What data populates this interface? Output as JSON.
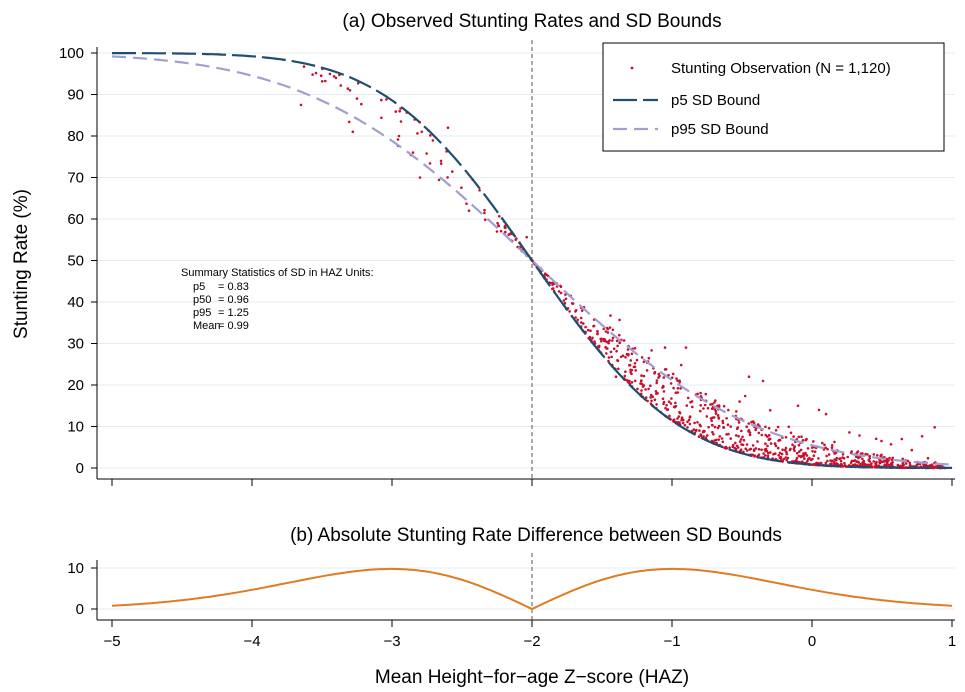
{
  "chart_data": [
    {
      "type": "scatter",
      "title": "(a) Observed Stunting Rates and SD Bounds",
      "xlabel": "",
      "ylabel": "Stunting Rate (%)",
      "xlim": [
        -5,
        1
      ],
      "ylim": [
        0,
        100
      ],
      "x_ticks": [
        "-5",
        "-4",
        "-3",
        "-2",
        "-1",
        "0",
        "1"
      ],
      "y_ticks": [
        "0",
        "10",
        "20",
        "30",
        "40",
        "50",
        "60",
        "70",
        "80",
        "90",
        "100"
      ],
      "reference_line_x": -2,
      "grid": "horizontal",
      "legend_position": "top-right",
      "legend": {
        "observation": "Stunting Observation (N = 1,120)",
        "p5": "p5 SD Bound",
        "p95": "p95 SD Bound"
      },
      "series": [
        {
          "name": "Stunting Observation (N = 1,120)",
          "kind": "scatter",
          "color": "#c8102e",
          "n": 1120,
          "points_sample": [
            [
              -3.65,
              87.5
            ],
            [
              -3.4,
              94
            ],
            [
              -3.3,
              91
            ],
            [
              -3.28,
              81
            ],
            [
              -3.25,
              89
            ],
            [
              -2.95,
              80
            ],
            [
              -2.85,
              76
            ],
            [
              -2.8,
              70
            ],
            [
              -2.65,
              74
            ],
            [
              -2.6,
              82
            ],
            [
              -2.45,
              62
            ],
            [
              -2.25,
              57
            ],
            [
              -1.55,
              30
            ],
            [
              -1.4,
              22
            ],
            [
              -1.05,
              29
            ],
            [
              -0.9,
              29
            ],
            [
              -0.45,
              22
            ],
            [
              -0.35,
              21
            ],
            [
              -0.1,
              15
            ],
            [
              0.05,
              14
            ],
            [
              0.1,
              13
            ]
          ]
        },
        {
          "name": "p5 SD Bound",
          "kind": "line",
          "sd": 0.83,
          "color": "#1f4e6e",
          "dash": "long-dash"
        },
        {
          "name": "p95 SD Bound",
          "kind": "line",
          "sd": 1.25,
          "color": "#a09fd0",
          "dash": "dash"
        }
      ],
      "annotation": {
        "heading": "Summary Statistics of SD in HAZ Units:",
        "rows": [
          {
            "label": "p5",
            "value": "= 0.83"
          },
          {
            "label": "p50",
            "value": "= 0.96"
          },
          {
            "label": "p95",
            "value": "= 1.25"
          },
          {
            "label": "Mean",
            "value": "= 0.99"
          }
        ]
      }
    },
    {
      "type": "line",
      "title": "(b) Absolute Stunting Rate Difference between SD Bounds",
      "xlabel": "Mean Height−for−age Z−score (HAZ)",
      "ylabel": "",
      "xlim": [
        -5,
        1
      ],
      "ylim": [
        0,
        10
      ],
      "x_ticks": [
        "−5",
        "−4",
        "−3",
        "−2",
        "−1",
        "0",
        "1"
      ],
      "y_ticks": [
        "0",
        "10"
      ],
      "reference_line_x": -2,
      "grid": "horizontal",
      "series": [
        {
          "name": "",
          "color": "#e07b22",
          "x": [
            -5,
            -4.5,
            -4,
            -3.5,
            -3,
            -2.5,
            -2,
            -1.5,
            -1,
            -0.5,
            0,
            0.5,
            1
          ],
          "y": [
            0.8,
            2.0,
            4.7,
            8.1,
            9.8,
            7.5,
            0,
            7.5,
            9.8,
            8.1,
            4.7,
            2.0,
            0.8
          ]
        }
      ]
    }
  ]
}
